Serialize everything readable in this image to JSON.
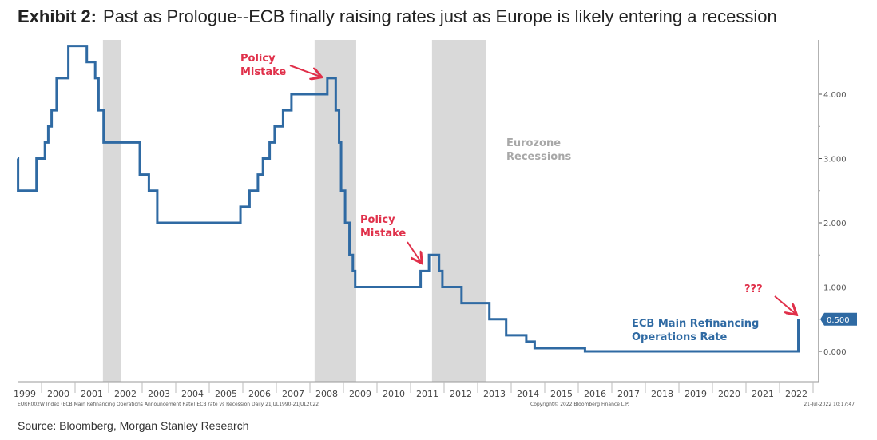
{
  "header": {
    "exhibit": "Exhibit 2:",
    "title": "Past as Prologue--ECB finally raising rates just as Europe is likely entering a recession"
  },
  "source": "Source: Bloomberg, Morgan Stanley Research",
  "colors": {
    "line": "#2f6aa3",
    "annotation": "#e0304a",
    "recession": "#d9d9d9",
    "recession_label": "#a8a8a8",
    "badge": "#2f6aa3"
  },
  "chart_data": {
    "type": "line",
    "step": true,
    "xlim": [
      1999,
      2023
    ],
    "ylim": [
      -0.4,
      4.9
    ],
    "y_axis_side": "right",
    "y_ticks": [
      0,
      1,
      2,
      3,
      4
    ],
    "y_tick_labels": [
      "0.000",
      "1.000",
      "2.000",
      "3.000",
      "4.000"
    ],
    "x_tick_labels": [
      "1999",
      "2000",
      "2001",
      "2002",
      "2003",
      "2004",
      "2005",
      "2006",
      "2007",
      "2008",
      "2009",
      "2010",
      "2011",
      "2012",
      "2013",
      "2014",
      "2015",
      "2016",
      "2017",
      "2018",
      "2019",
      "2020",
      "2021",
      "2022"
    ],
    "series": [
      {
        "name": "ECB Main Refinancing Operations Rate",
        "points": [
          [
            1999.0,
            3.0
          ],
          [
            1999.3,
            2.5
          ],
          [
            1999.85,
            3.0
          ],
          [
            2000.1,
            3.25
          ],
          [
            2000.2,
            3.5
          ],
          [
            2000.3,
            3.75
          ],
          [
            2000.45,
            4.25
          ],
          [
            2000.8,
            4.75
          ],
          [
            2001.35,
            4.5
          ],
          [
            2001.6,
            4.25
          ],
          [
            2001.7,
            3.75
          ],
          [
            2001.85,
            3.25
          ],
          [
            2002.93,
            2.75
          ],
          [
            2003.2,
            2.5
          ],
          [
            2003.45,
            2.0
          ],
          [
            2005.93,
            2.25
          ],
          [
            2006.2,
            2.5
          ],
          [
            2006.45,
            2.75
          ],
          [
            2006.6,
            3.0
          ],
          [
            2006.8,
            3.25
          ],
          [
            2006.95,
            3.5
          ],
          [
            2007.2,
            3.75
          ],
          [
            2007.45,
            4.0
          ],
          [
            2008.52,
            4.25
          ],
          [
            2008.77,
            3.75
          ],
          [
            2008.87,
            3.25
          ],
          [
            2008.93,
            2.5
          ],
          [
            2009.05,
            2.0
          ],
          [
            2009.18,
            1.5
          ],
          [
            2009.28,
            1.25
          ],
          [
            2009.35,
            1.0
          ],
          [
            2011.3,
            1.25
          ],
          [
            2011.55,
            1.5
          ],
          [
            2011.85,
            1.25
          ],
          [
            2011.95,
            1.0
          ],
          [
            2012.52,
            0.75
          ],
          [
            2013.35,
            0.5
          ],
          [
            2013.85,
            0.25
          ],
          [
            2014.45,
            0.15
          ],
          [
            2014.7,
            0.05
          ],
          [
            2016.2,
            0.0
          ],
          [
            2022.55,
            0.0
          ],
          [
            2022.56,
            0.5
          ]
        ]
      }
    ],
    "last_value_label": "0.500",
    "recessions": [
      [
        2001.83,
        2002.38
      ],
      [
        2008.14,
        2009.38
      ],
      [
        2011.64,
        2013.24
      ]
    ],
    "annotations": {
      "policy_mistake_1": [
        "Policy",
        "Mistake"
      ],
      "policy_mistake_2": [
        "Policy",
        "Mistake"
      ],
      "question": "???",
      "recessions_label": [
        "Eurozone",
        "Recessions"
      ],
      "series_label": [
        "ECB Main Refinancing",
        "Operations Rate"
      ]
    },
    "footer": {
      "left": "EURR002W Index (ECB Main Refinancing Operations Announcement Rate) ECB rate vs Recession  Daily 21JUL1990-21JUL2022",
      "center": "Copyright© 2022 Bloomberg Finance L.P.",
      "right": "21-Jul-2022 10:17:47"
    },
    "grid": false
  }
}
